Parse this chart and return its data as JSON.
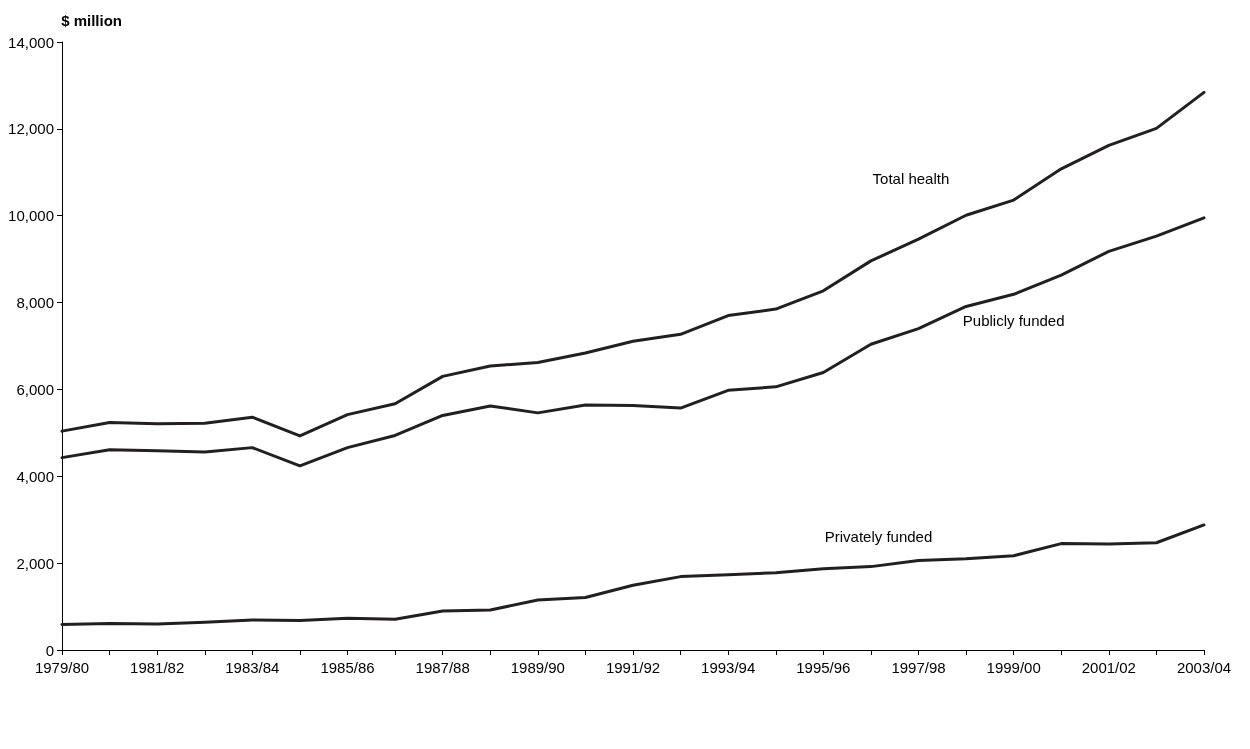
{
  "chart_data": {
    "type": "line",
    "ylabel": "$ million",
    "categories": [
      "1979/80",
      null,
      "1981/82",
      null,
      "1983/84",
      null,
      "1985/86",
      null,
      "1987/88",
      null,
      "1989/90",
      null,
      "1991/92",
      null,
      "1993/94",
      null,
      "1995/96",
      null,
      "1997/98",
      null,
      "1999/00",
      null,
      "2001/02",
      null,
      "2003/04"
    ],
    "series": [
      {
        "name": "Total health",
        "color": "#231f20",
        "values": [
          5040,
          5240,
          5210,
          5220,
          5360,
          4930,
          5420,
          5670,
          6300,
          6540,
          6620,
          6840,
          7110,
          7270,
          7700,
          7850,
          8270,
          8960,
          9460,
          10010,
          10360,
          11080,
          11620,
          12010,
          12840
        ]
      },
      {
        "name": "Publicly funded",
        "color": "#231f20",
        "values": [
          4430,
          4610,
          4590,
          4560,
          4660,
          4240,
          4660,
          4940,
          5400,
          5620,
          5460,
          5640,
          5630,
          5570,
          5980,
          6060,
          6390,
          7040,
          7400,
          7910,
          8190,
          8630,
          9180,
          9530,
          9950
        ]
      },
      {
        "name": "Privately funded",
        "color": "#231f20",
        "values": [
          590,
          610,
          600,
          640,
          690,
          680,
          730,
          710,
          900,
          920,
          1150,
          1210,
          1490,
          1690,
          1730,
          1780,
          1870,
          1920,
          2060,
          2100,
          2170,
          2450,
          2440,
          2470,
          2880
        ]
      }
    ],
    "ylim": [
      0,
      14000
    ],
    "yticks": [
      0,
      {
        "value": 2000,
        "label": "2,000"
      },
      {
        "value": 4000,
        "label": "4,000"
      },
      {
        "value": 6000,
        "label": "6,000"
      },
      {
        "value": 8000,
        "label": "8,000"
      },
      {
        "value": 10000,
        "label": "10,000"
      },
      {
        "value": 12000,
        "label": "12,000"
      },
      {
        "value": 14000,
        "label": "14,000"
      }
    ],
    "grid": false,
    "legend": false,
    "marker": "none",
    "line_style": "solid"
  }
}
